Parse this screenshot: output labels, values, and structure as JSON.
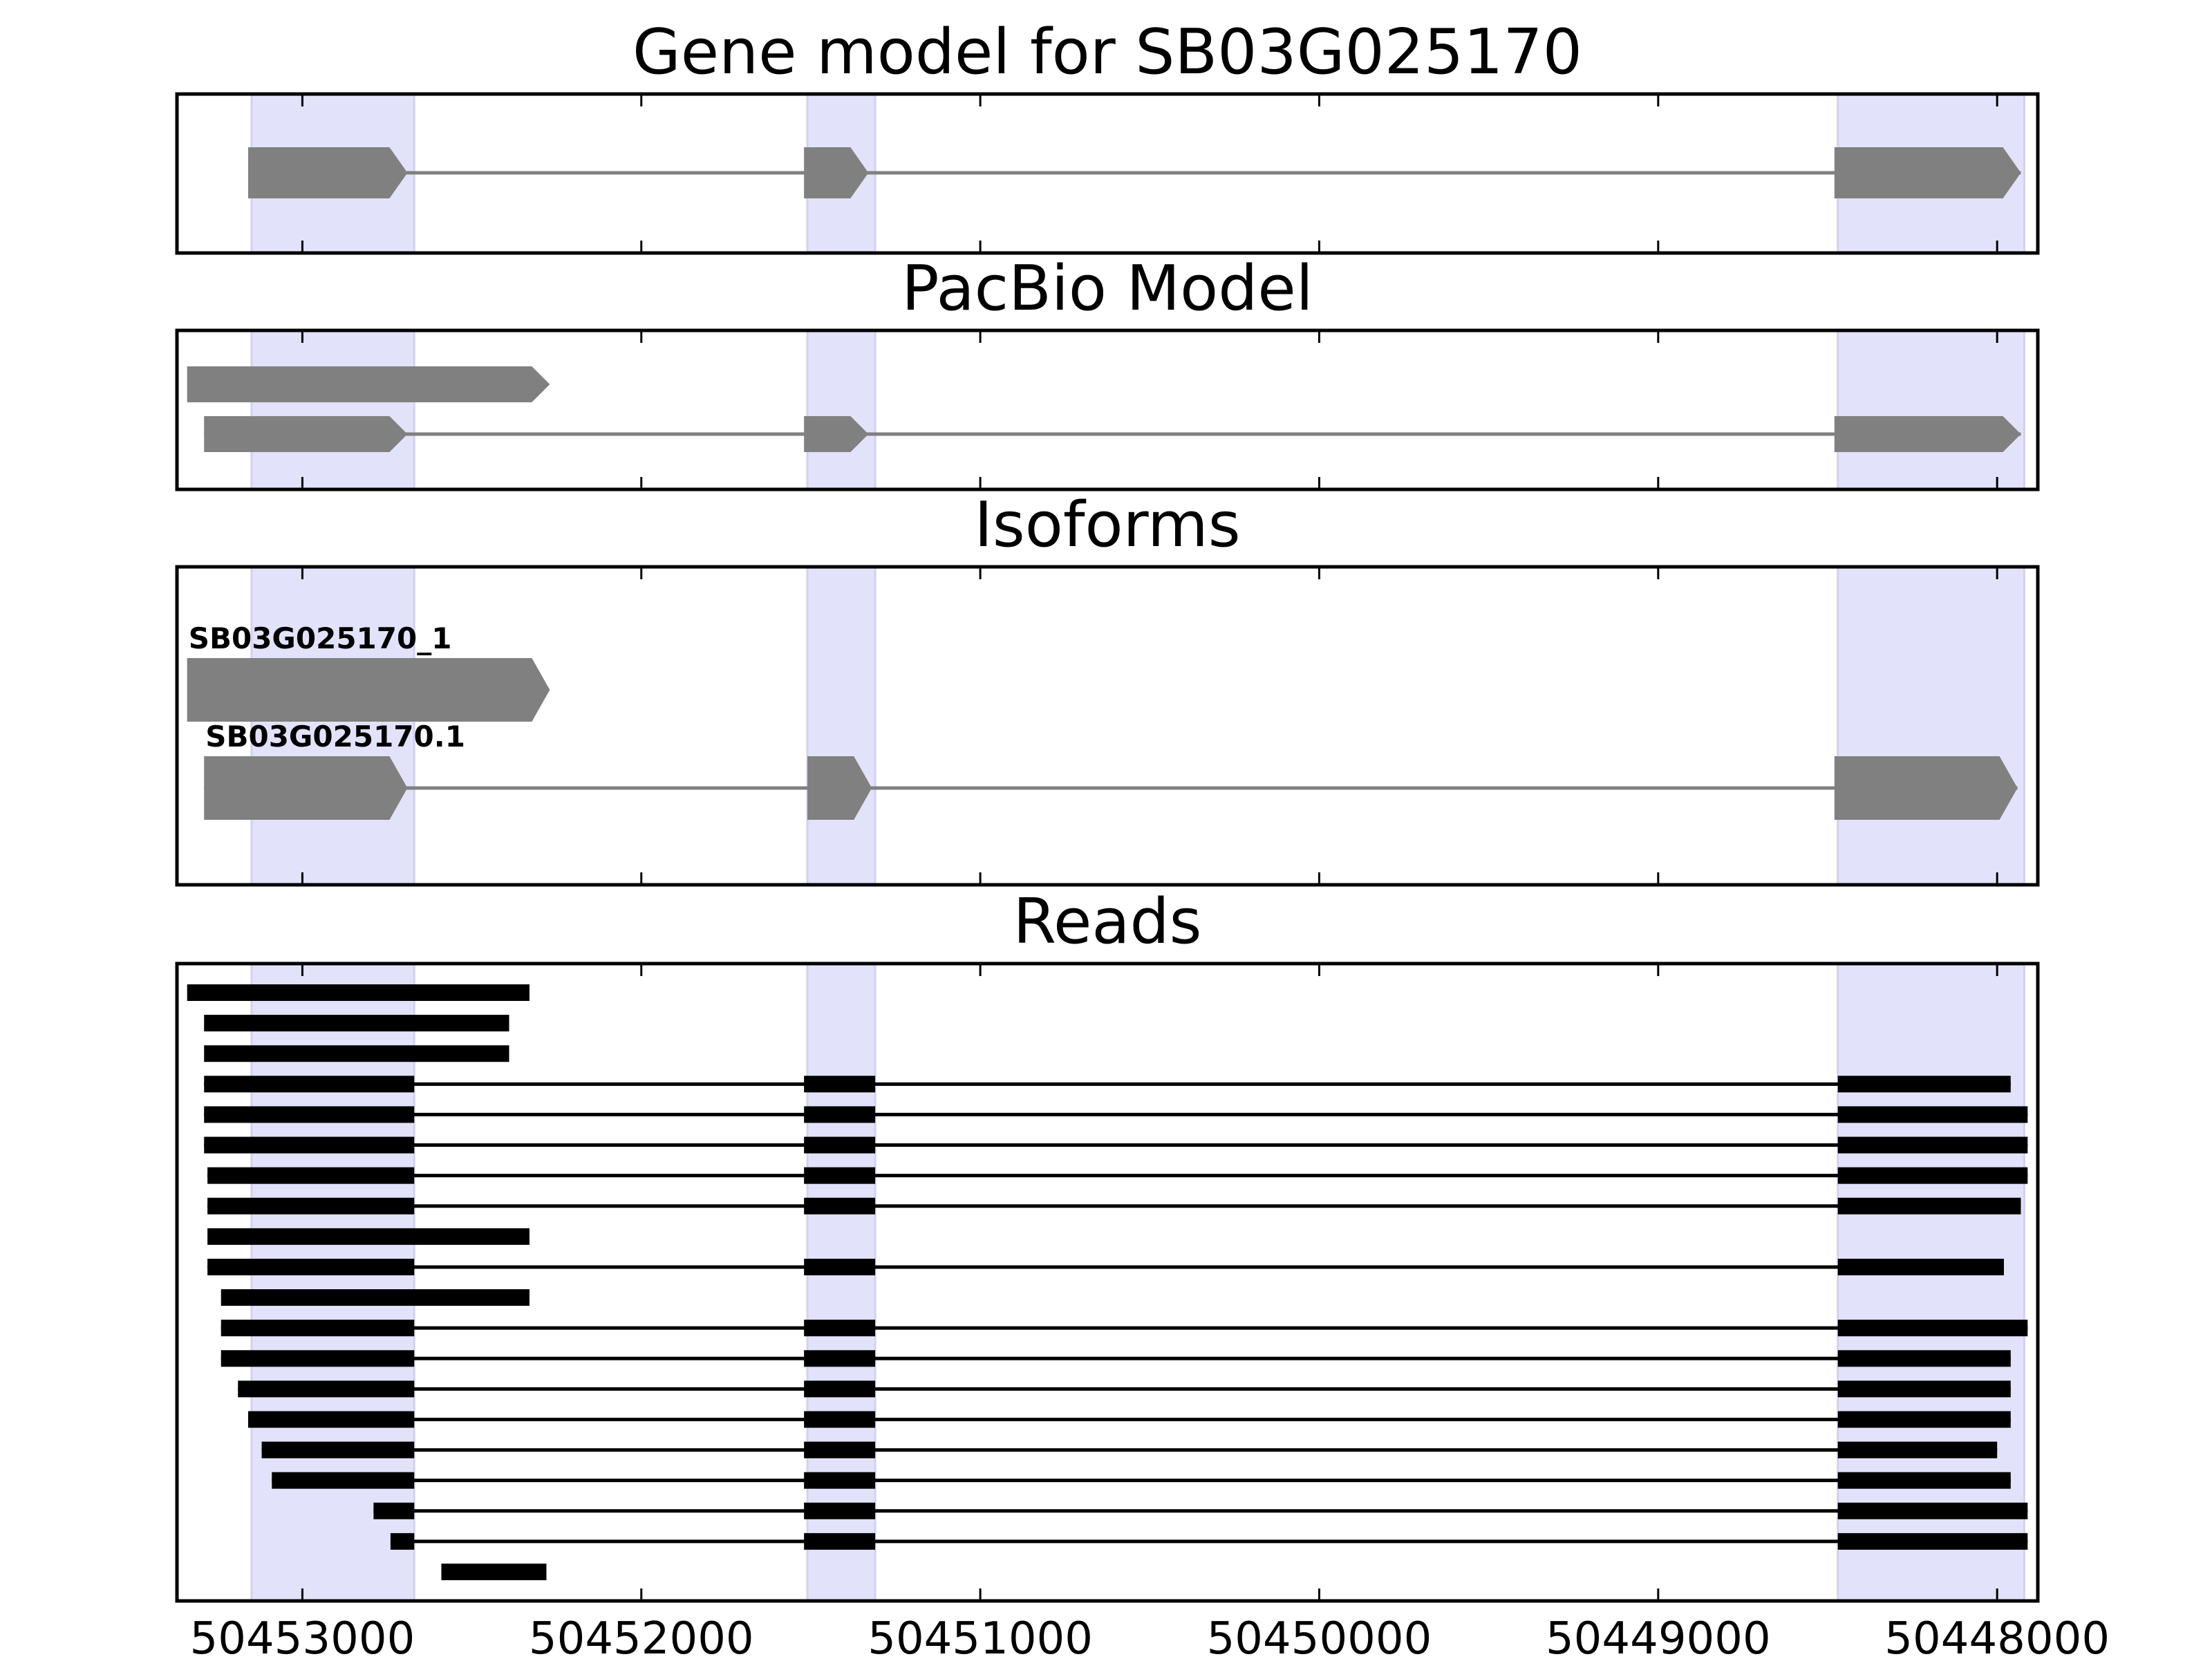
{
  "chart_data": {
    "type": "gene-track",
    "x_axis": {
      "reversed": true,
      "xlim": [
        50453370,
        50447880
      ],
      "ticks": [
        50453000,
        50452000,
        50451000,
        50450000,
        50449000,
        50448000
      ],
      "tick_labels": [
        "50453000",
        "50452000",
        "50451000",
        "50450000",
        "50449000",
        "50448000"
      ]
    },
    "colors": {
      "highlight": "#e2e2fa",
      "highlight_edge": "#d2d2ee",
      "feature": "#808080",
      "read": "#000000",
      "frame": "#000000"
    },
    "highlight_regions": [
      [
        50453150,
        50452670
      ],
      [
        50451510,
        50451310
      ],
      [
        50448470,
        50447920
      ]
    ],
    "panels": [
      {
        "title": "Gene model for SB03G025170",
        "kind": "gene",
        "rows": [
          {
            "label": "",
            "exons": [
              [
                50453160,
                50452690
              ],
              [
                50451520,
                50451330
              ],
              [
                50448480,
                50447930
              ]
            ]
          }
        ]
      },
      {
        "title": "PacBio Model",
        "kind": "gene",
        "rows": [
          {
            "label": "",
            "exons": [
              [
                50453340,
                50452270
              ]
            ]
          },
          {
            "label": "",
            "exons": [
              [
                50453290,
                50452690
              ],
              [
                50451520,
                50451330
              ],
              [
                50448480,
                50447930
              ]
            ]
          }
        ]
      },
      {
        "title": "Isoforms",
        "kind": "isoform",
        "rows": [
          {
            "label": "SB03G025170_1",
            "exons": [
              [
                50453340,
                50452270
              ]
            ]
          },
          {
            "label": "SB03G025170.1",
            "exons": [
              [
                50453290,
                50452690
              ],
              [
                50451510,
                50451320
              ],
              [
                50448480,
                50447940
              ]
            ]
          }
        ]
      },
      {
        "title": "Reads",
        "kind": "reads",
        "rows": [
          {
            "exons": [
              [
                50453340,
                50452330
              ]
            ]
          },
          {
            "exons": [
              [
                50453290,
                50452390
              ]
            ]
          },
          {
            "exons": [
              [
                50453290,
                50452390
              ]
            ]
          },
          {
            "exons": [
              [
                50453290,
                50452670
              ],
              [
                50451520,
                50451310
              ],
              [
                50448470,
                50447960
              ]
            ]
          },
          {
            "exons": [
              [
                50453290,
                50452670
              ],
              [
                50451520,
                50451310
              ],
              [
                50448470,
                50447910
              ]
            ]
          },
          {
            "exons": [
              [
                50453290,
                50452670
              ],
              [
                50451520,
                50451310
              ],
              [
                50448470,
                50447910
              ]
            ]
          },
          {
            "exons": [
              [
                50453280,
                50452670
              ],
              [
                50451520,
                50451310
              ],
              [
                50448470,
                50447910
              ]
            ]
          },
          {
            "exons": [
              [
                50453280,
                50452670
              ],
              [
                50451520,
                50451310
              ],
              [
                50448470,
                50447930
              ]
            ]
          },
          {
            "exons": [
              [
                50453280,
                50452330
              ]
            ]
          },
          {
            "exons": [
              [
                50453280,
                50452670
              ],
              [
                50451520,
                50451310
              ],
              [
                50448470,
                50447980
              ]
            ]
          },
          {
            "exons": [
              [
                50453240,
                50452330
              ]
            ]
          },
          {
            "exons": [
              [
                50453240,
                50452670
              ],
              [
                50451520,
                50451310
              ],
              [
                50448470,
                50447910
              ]
            ]
          },
          {
            "exons": [
              [
                50453240,
                50452670
              ],
              [
                50451520,
                50451310
              ],
              [
                50448470,
                50447960
              ]
            ]
          },
          {
            "exons": [
              [
                50453190,
                50452670
              ],
              [
                50451520,
                50451310
              ],
              [
                50448470,
                50447960
              ]
            ]
          },
          {
            "exons": [
              [
                50453160,
                50452670
              ],
              [
                50451520,
                50451310
              ],
              [
                50448470,
                50447960
              ]
            ]
          },
          {
            "exons": [
              [
                50453120,
                50452670
              ],
              [
                50451520,
                50451310
              ],
              [
                50448470,
                50448000
              ]
            ]
          },
          {
            "exons": [
              [
                50453090,
                50452670
              ],
              [
                50451520,
                50451310
              ],
              [
                50448470,
                50447960
              ]
            ]
          },
          {
            "exons": [
              [
                50452790,
                50452670
              ],
              [
                50451520,
                50451310
              ],
              [
                50448470,
                50447910
              ]
            ]
          },
          {
            "exons": [
              [
                50452740,
                50452670
              ],
              [
                50451520,
                50451310
              ],
              [
                50448470,
                50447910
              ]
            ]
          },
          {
            "exons": [
              [
                50452590,
                50452280
              ]
            ]
          }
        ]
      }
    ]
  }
}
